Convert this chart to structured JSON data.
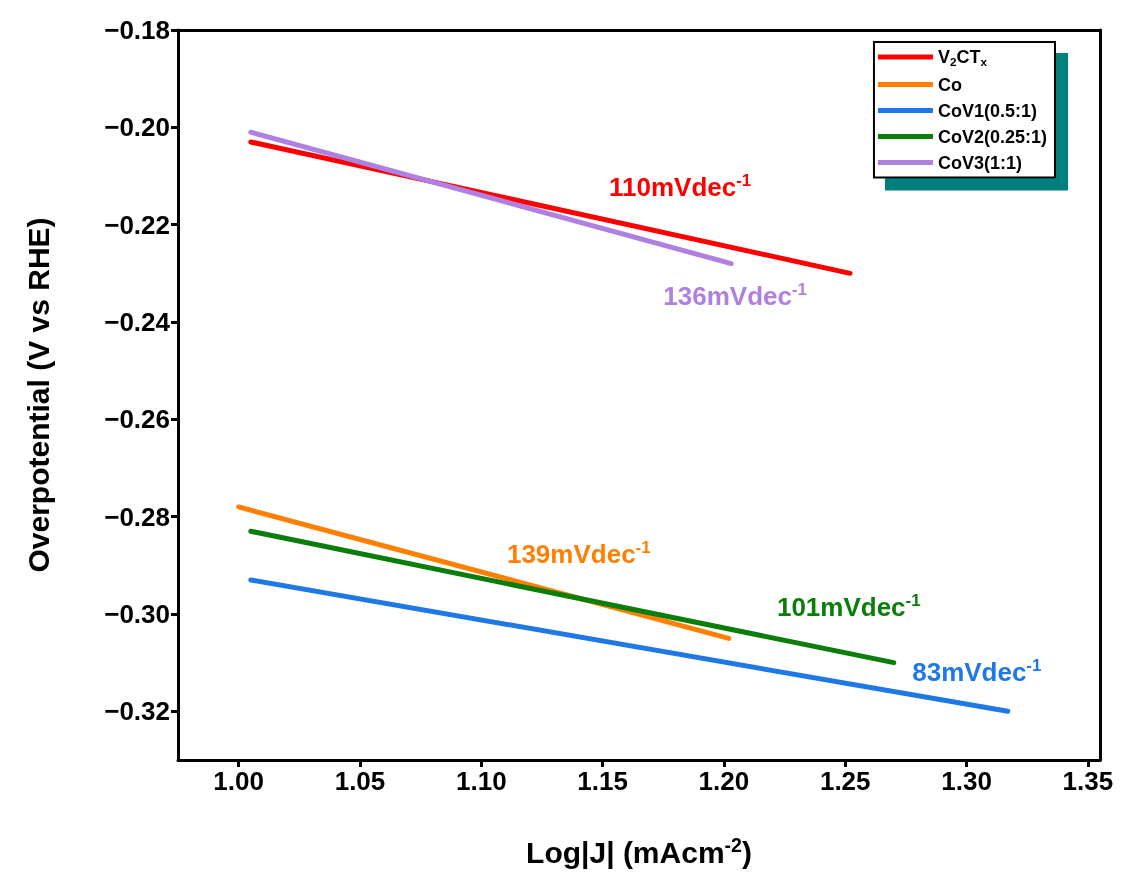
{
  "chart_data": {
    "type": "line",
    "xlabel": "Log|J| (mAcm$^{-2}$)",
    "ylabel": "Overpotential (V vs RHE)",
    "xlim": [
      0.975,
      1.355
    ],
    "ylim": [
      -0.33,
      -0.18
    ],
    "xticks": [
      {
        "value": 1,
        "label": "1.00"
      },
      {
        "value": 1.05,
        "label": "1.05"
      },
      {
        "value": 1.1,
        "label": "1.10"
      },
      {
        "value": 1.15,
        "label": "1.15"
      },
      {
        "value": 1.2,
        "label": "1.20"
      },
      {
        "value": 1.25,
        "label": "1.25"
      },
      {
        "value": 1.3,
        "label": "1.30"
      },
      {
        "value": 1.35,
        "label": "1.35"
      }
    ],
    "yticks": [
      {
        "value": -0.32,
        "label": "−0.32"
      },
      {
        "value": -0.3,
        "label": "−0.30"
      },
      {
        "value": -0.28,
        "label": "−0.28"
      },
      {
        "value": -0.26,
        "label": "−0.26"
      },
      {
        "value": -0.24,
        "label": "−0.24"
      },
      {
        "value": -0.22,
        "label": "−0.22"
      },
      {
        "value": -0.2,
        "label": "−0.20"
      },
      {
        "value": -0.18,
        "label": "−0.18"
      }
    ],
    "grid": false,
    "legend": "top right",
    "marker": "none",
    "line_style": "solid",
    "series": [
      {
        "name": "V$_{2}$CT$_{x}$",
        "color": "#ff0000",
        "x": [
          1.005,
          1.252
        ],
        "values": [
          -0.203,
          -0.23
        ]
      },
      {
        "name": "Co",
        "color": "#ff8000",
        "x": [
          1.0,
          1.202
        ],
        "values": [
          -0.278,
          -0.305
        ]
      },
      {
        "name": "CoV1(0.5:1)",
        "color": "#1e78e6",
        "x": [
          1.005,
          1.317
        ],
        "values": [
          -0.293,
          -0.32
        ]
      },
      {
        "name": "CoV2(0.25:1)",
        "color": "#0a7d0a",
        "x": [
          1.005,
          1.27
        ],
        "values": [
          -0.283,
          -0.31
        ]
      },
      {
        "name": "CoV3(1:1)",
        "color": "#b080e0",
        "x": [
          1.005,
          1.203
        ],
        "values": [
          -0.201,
          -0.228
        ]
      }
    ],
    "annotations": [
      "110mVdec$^{-1}$",
      "139mVdec$^{-1}$",
      "83mVdec$^{-1}$",
      "101mVdec$^{-1}$",
      "136mVdec$^{-1}$"
    ]
  }
}
